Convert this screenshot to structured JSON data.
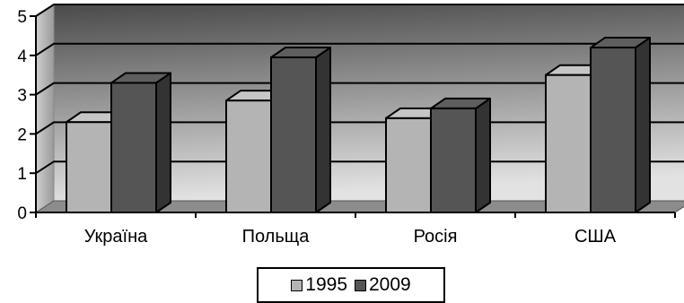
{
  "chart_data": {
    "type": "bar",
    "categories": [
      "Україна",
      "Польща",
      "Росія",
      "США"
    ],
    "series": [
      {
        "name": "1995",
        "values": [
          2.3,
          2.85,
          2.4,
          3.5
        ],
        "color": "#b4b4b4"
      },
      {
        "name": "2009",
        "values": [
          3.3,
          3.95,
          2.65,
          4.2
        ],
        "color": "#555555"
      }
    ],
    "ylim": [
      0,
      5
    ],
    "yticks": [
      "0",
      "1",
      "2",
      "3",
      "4",
      "5"
    ],
    "grid": true,
    "style": "3d-bar",
    "legend_position": "bottom-center"
  },
  "legend": {
    "items": [
      {
        "label": "1995",
        "color": "#b4b4b4"
      },
      {
        "label": "2009",
        "color": "#555555"
      }
    ]
  }
}
